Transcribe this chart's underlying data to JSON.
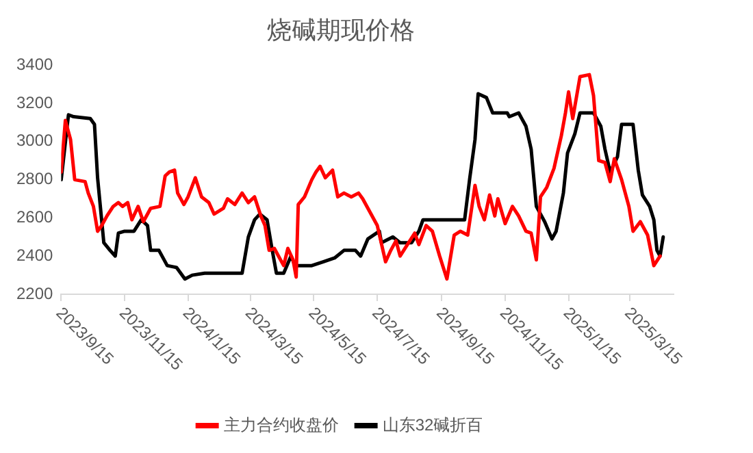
{
  "chart_data": {
    "type": "line",
    "title": "烧碱期现价格",
    "xlim": [
      "2023-09-15",
      "2025-04-26"
    ],
    "xticks": [
      {
        "value": "2023-09-15",
        "label": "2023/9/15"
      },
      {
        "value": "2023-11-15",
        "label": "2023/11/15"
      },
      {
        "value": "2024-01-15",
        "label": "2024/1/15"
      },
      {
        "value": "2024-03-15",
        "label": "2024/3/15"
      },
      {
        "value": "2024-05-15",
        "label": "2024/5/15"
      },
      {
        "value": "2024-07-15",
        "label": "2024/7/15"
      },
      {
        "value": "2024-09-15",
        "label": "2024/9/15"
      },
      {
        "value": "2024-11-15",
        "label": "2024/11/15"
      },
      {
        "value": "2025-01-15",
        "label": "2025/1/15"
      },
      {
        "value": "2025-03-15",
        "label": "2025/3/15"
      }
    ],
    "ylim": [
      2200,
      3400
    ],
    "yticks": [
      2200,
      2400,
      2600,
      2800,
      3000,
      3200,
      3400
    ],
    "grid": false,
    "legend": "bottom",
    "marker": "none",
    "line_style": "solid",
    "series": [
      {
        "name": "主力合约收盘价",
        "color": "#ff0000",
        "x": [
          "2023-09-15",
          "2023-09-19",
          "2023-09-24",
          "2023-09-28",
          "2023-10-08",
          "2023-10-11",
          "2023-10-16",
          "2023-10-20",
          "2023-10-24",
          "2023-10-29",
          "2023-11-04",
          "2023-11-09",
          "2023-11-13",
          "2023-11-18",
          "2023-11-22",
          "2023-11-28",
          "2023-12-03",
          "2023-12-10",
          "2023-12-19",
          "2023-12-24",
          "2023-12-28",
          "2024-01-02",
          "2024-01-05",
          "2024-01-11",
          "2024-01-15",
          "2024-01-22",
          "2024-01-28",
          "2024-02-04",
          "2024-02-09",
          "2024-02-18",
          "2024-02-22",
          "2024-02-29",
          "2024-03-07",
          "2024-03-13",
          "2024-03-19",
          "2024-03-25",
          "2024-03-29",
          "2024-04-02",
          "2024-04-07",
          "2024-04-11",
          "2024-04-16",
          "2024-04-20",
          "2024-04-25",
          "2024-04-28",
          "2024-04-30",
          "2024-05-06",
          "2024-05-13",
          "2024-05-17",
          "2024-05-21",
          "2024-05-26",
          "2024-06-02",
          "2024-06-07",
          "2024-06-13",
          "2024-06-20",
          "2024-06-27",
          "2024-07-01",
          "2024-07-08",
          "2024-07-15",
          "2024-07-23",
          "2024-07-28",
          "2024-08-02",
          "2024-08-06",
          "2024-08-13",
          "2024-08-20",
          "2024-08-24",
          "2024-08-31",
          "2024-09-06",
          "2024-09-13",
          "2024-09-20",
          "2024-09-27",
          "2024-10-03",
          "2024-10-10",
          "2024-10-17",
          "2024-10-21",
          "2024-10-26",
          "2024-10-31",
          "2024-11-05",
          "2024-11-08",
          "2024-11-15",
          "2024-11-22",
          "2024-11-28",
          "2024-12-05",
          "2024-12-10",
          "2024-12-15",
          "2024-12-19",
          "2024-12-25",
          "2025-01-01",
          "2025-01-08",
          "2025-01-12",
          "2025-01-15",
          "2025-01-19",
          "2025-01-26",
          "2025-02-04",
          "2025-02-08",
          "2025-02-13",
          "2025-02-19",
          "2025-02-24",
          "2025-02-28",
          "2025-03-07",
          "2025-03-14",
          "2025-03-18",
          "2025-03-25",
          "2025-04-01",
          "2025-04-07",
          "2025-04-13"
        ],
        "values": [
          2840,
          3110,
          3010,
          2800,
          2790,
          2730,
          2660,
          2530,
          2560,
          2610,
          2660,
          2680,
          2660,
          2680,
          2590,
          2660,
          2580,
          2650,
          2660,
          2820,
          2840,
          2850,
          2730,
          2670,
          2710,
          2810,
          2710,
          2680,
          2620,
          2650,
          2700,
          2670,
          2730,
          2680,
          2710,
          2610,
          2560,
          2430,
          2440,
          2400,
          2350,
          2440,
          2380,
          2290,
          2670,
          2710,
          2800,
          2840,
          2870,
          2810,
          2850,
          2710,
          2730,
          2710,
          2730,
          2700,
          2630,
          2560,
          2370,
          2430,
          2480,
          2400,
          2460,
          2520,
          2460,
          2560,
          2530,
          2400,
          2280,
          2510,
          2530,
          2510,
          2770,
          2660,
          2590,
          2720,
          2610,
          2700,
          2570,
          2660,
          2610,
          2530,
          2520,
          2380,
          2710,
          2760,
          2860,
          3030,
          3150,
          3260,
          3120,
          3340,
          3350,
          3240,
          2900,
          2890,
          2790,
          2910,
          2800,
          2660,
          2530,
          2580,
          2510,
          2350,
          2400
        ]
      },
      {
        "name": "山东32碱折百",
        "color": "#000000",
        "x": [
          "2023-09-15",
          "2023-09-22",
          "2023-09-27",
          "2023-10-13",
          "2023-10-17",
          "2023-10-20",
          "2023-10-26",
          "2023-11-01",
          "2023-11-06",
          "2023-11-09",
          "2023-11-15",
          "2023-11-24",
          "2023-12-01",
          "2023-12-07",
          "2023-12-10",
          "2023-12-18",
          "2023-12-26",
          "2024-01-04",
          "2024-01-12",
          "2024-01-19",
          "2024-01-31",
          "2024-03-07",
          "2024-03-13",
          "2024-03-19",
          "2024-03-24",
          "2024-03-31",
          "2024-04-05",
          "2024-04-09",
          "2024-04-16",
          "2024-04-23",
          "2024-04-27",
          "2024-05-13",
          "2024-05-24",
          "2024-06-04",
          "2024-06-13",
          "2024-06-24",
          "2024-06-29",
          "2024-07-06",
          "2024-07-17",
          "2024-07-19",
          "2024-07-30",
          "2024-08-06",
          "2024-08-17",
          "2024-08-24",
          "2024-08-28",
          "2024-10-07",
          "2024-10-12",
          "2024-10-17",
          "2024-10-20",
          "2024-10-28",
          "2024-11-03",
          "2024-11-17",
          "2024-11-19",
          "2024-11-28",
          "2024-12-05",
          "2024-12-10",
          "2024-12-15",
          "2024-12-23",
          "2024-12-30",
          "2025-01-03",
          "2025-01-10",
          "2025-01-14",
          "2025-01-21",
          "2025-01-26",
          "2025-02-08",
          "2025-02-15",
          "2025-02-19",
          "2025-02-24",
          "2025-03-03",
          "2025-03-07",
          "2025-03-18",
          "2025-03-23",
          "2025-03-27",
          "2025-04-03",
          "2025-04-07",
          "2025-04-10",
          "2025-04-13",
          "2025-04-16"
        ],
        "values": [
          2800,
          3140,
          3130,
          3120,
          3090,
          2810,
          2470,
          2430,
          2400,
          2520,
          2530,
          2530,
          2590,
          2560,
          2430,
          2430,
          2350,
          2340,
          2280,
          2300,
          2310,
          2310,
          2500,
          2590,
          2620,
          2590,
          2430,
          2310,
          2310,
          2400,
          2350,
          2350,
          2370,
          2390,
          2430,
          2430,
          2400,
          2490,
          2530,
          2470,
          2500,
          2470,
          2470,
          2530,
          2590,
          2590,
          2810,
          3010,
          3250,
          3230,
          3150,
          3150,
          3130,
          3150,
          3080,
          2960,
          2660,
          2580,
          2490,
          2530,
          2730,
          2940,
          3040,
          3150,
          3150,
          3080,
          2960,
          2840,
          2920,
          3090,
          3090,
          2850,
          2720,
          2660,
          2590,
          2430,
          2400,
          2500
        ]
      }
    ]
  }
}
